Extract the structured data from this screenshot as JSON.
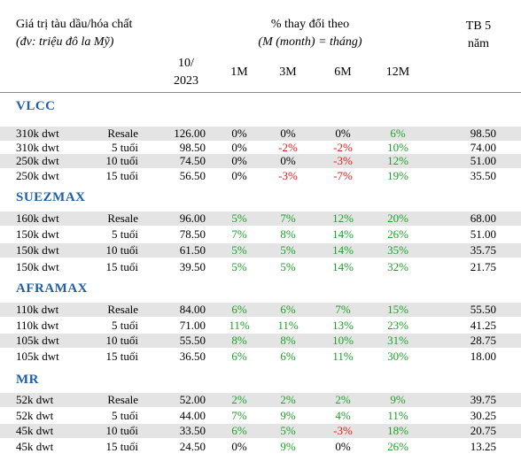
{
  "header": {
    "title": "Giá trị tàu dầu/hóa chất",
    "unit": "(đv: triệu đô la Mỹ)",
    "change_title": "% thay đổi theo",
    "change_sub": "(M (month) = tháng)",
    "tb_line1": "TB 5",
    "tb_line2": "năm",
    "date_line1": "10/",
    "date_line2": "2023",
    "cols": [
      "1M",
      "3M",
      "6M",
      "12M"
    ]
  },
  "sections": [
    {
      "name": "VLCC",
      "rows": [
        {
          "size": "310k dwt",
          "age": "Resale",
          "value": "126.00",
          "m1": "0%",
          "m3": "0%",
          "m6": "0%",
          "m12": "6%",
          "tb": "98.50"
        },
        {
          "size": "310k dwt",
          "age": "5 tuổi",
          "value": "98.50",
          "m1": "0%",
          "m3": "-2%",
          "m6": "-2%",
          "m12": "10%",
          "tb": "74.00"
        },
        {
          "size": "250k dwt",
          "age": "10 tuổi",
          "value": "74.50",
          "m1": "0%",
          "m3": "0%",
          "m6": "-3%",
          "m12": "12%",
          "tb": "51.00"
        },
        {
          "size": "250k dwt",
          "age": "15 tuổi",
          "value": "56.50",
          "m1": "0%",
          "m3": "-3%",
          "m6": "-7%",
          "m12": "19%",
          "tb": "35.50"
        }
      ]
    },
    {
      "name": "SUEZMAX",
      "rows": [
        {
          "size": "160k dwt",
          "age": "Resale",
          "value": "96.00",
          "m1": "5%",
          "m3": "7%",
          "m6": "12%",
          "m12": "20%",
          "tb": "68.00"
        },
        {
          "size": "150k dwt",
          "age": "5 tuổi",
          "value": "78.50",
          "m1": "7%",
          "m3": "8%",
          "m6": "14%",
          "m12": "26%",
          "tb": "51.00"
        },
        {
          "size": "150k dwt",
          "age": "10 tuổi",
          "value": "61.50",
          "m1": "5%",
          "m3": "5%",
          "m6": "14%",
          "m12": "35%",
          "tb": "35.75"
        },
        {
          "size": "150k dwt",
          "age": "15 tuổi",
          "value": "39.50",
          "m1": "5%",
          "m3": "5%",
          "m6": "14%",
          "m12": "32%",
          "tb": "21.75"
        }
      ]
    },
    {
      "name": "AFRAMAX",
      "rows": [
        {
          "size": "110k dwt",
          "age": "Resale",
          "value": "84.00",
          "m1": "6%",
          "m3": "6%",
          "m6": "7%",
          "m12": "15%",
          "tb": "55.50"
        },
        {
          "size": "110k dwt",
          "age": "5 tuổi",
          "value": "71.00",
          "m1": "11%",
          "m3": "11%",
          "m6": "13%",
          "m12": "23%",
          "tb": "41.25"
        },
        {
          "size": "105k dwt",
          "age": "10 tuổi",
          "value": "55.50",
          "m1": "8%",
          "m3": "8%",
          "m6": "10%",
          "m12": "31%",
          "tb": "28.75"
        },
        {
          "size": "105k dwt",
          "age": "15 tuổi",
          "value": "36.50",
          "m1": "6%",
          "m3": "6%",
          "m6": "11%",
          "m12": "30%",
          "tb": "18.00"
        }
      ]
    },
    {
      "name": "MR",
      "rows": [
        {
          "size": "52k dwt",
          "age": "Resale",
          "value": "52.00",
          "m1": "2%",
          "m3": "2%",
          "m6": "2%",
          "m12": "9%",
          "tb": "39.75"
        },
        {
          "size": "52k dwt",
          "age": "5 tuổi",
          "value": "44.00",
          "m1": "7%",
          "m3": "9%",
          "m6": "4%",
          "m12": "11%",
          "tb": "30.25"
        },
        {
          "size": "45k dwt",
          "age": "10 tuổi",
          "value": "33.50",
          "m1": "6%",
          "m3": "5%",
          "m6": "-3%",
          "m12": "18%",
          "tb": "20.75"
        },
        {
          "size": "45k dwt",
          "age": "15 tuổi",
          "value": "24.50",
          "m1": "0%",
          "m3": "9%",
          "m6": "0%",
          "m12": "26%",
          "tb": "13.25"
        }
      ]
    }
  ],
  "colors": {
    "positive": "#1fa02a",
    "negative": "#e0201c",
    "section": "#1f5fa8",
    "shade": "#e4e4e4"
  }
}
